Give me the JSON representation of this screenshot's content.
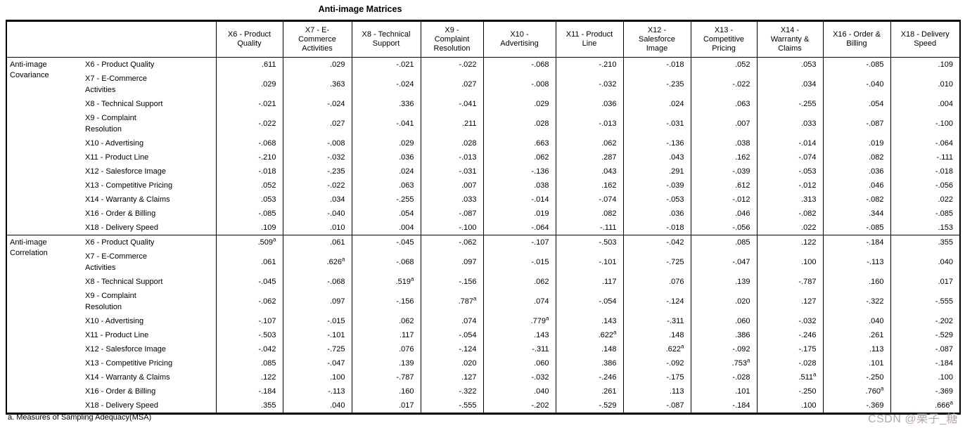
{
  "title": "Anti-image Matrices",
  "footnote": "a. Measures of Sampling Adequacy(MSA)",
  "watermark": "CSDN @栗子_糖",
  "table": {
    "columns": [
      "X6 - Product\nQuality",
      "X7 - E-\nCommerce\nActivities",
      "X8 - Technical\nSupport",
      "X9 -\nComplaint\nResolution",
      "X10 -\nAdvertising",
      "X11 - Product\nLine",
      "X12 -\nSalesforce\nImage",
      "X13 -\nCompetitive\nPricing",
      "X14 -\nWarranty &\nClaims",
      "X16 - Order &\nBilling",
      "X18 - Delivery\nSpeed"
    ],
    "sections": [
      {
        "label": "Anti-image Covariance",
        "rows": [
          {
            "label": "X6 - Product Quality",
            "values": [
              ".611",
              ".029",
              "-.021",
              "-.022",
              "-.068",
              "-.210",
              "-.018",
              ".052",
              ".053",
              "-.085",
              ".109"
            ]
          },
          {
            "label": "X7 - E-Commerce\nActivities",
            "values": [
              ".029",
              ".363",
              "-.024",
              ".027",
              "-.008",
              "-.032",
              "-.235",
              "-.022",
              ".034",
              "-.040",
              ".010"
            ]
          },
          {
            "label": "X8 - Technical Support",
            "values": [
              "-.021",
              "-.024",
              ".336",
              "-.041",
              ".029",
              ".036",
              ".024",
              ".063",
              "-.255",
              ".054",
              ".004"
            ]
          },
          {
            "label": "X9 - Complaint\nResolution",
            "values": [
              "-.022",
              ".027",
              "-.041",
              ".211",
              ".028",
              "-.013",
              "-.031",
              ".007",
              ".033",
              "-.087",
              "-.100"
            ]
          },
          {
            "label": "X10 - Advertising",
            "values": [
              "-.068",
              "-.008",
              ".029",
              ".028",
              ".663",
              ".062",
              "-.136",
              ".038",
              "-.014",
              ".019",
              "-.064"
            ]
          },
          {
            "label": "X11 - Product Line",
            "values": [
              "-.210",
              "-.032",
              ".036",
              "-.013",
              ".062",
              ".287",
              ".043",
              ".162",
              "-.074",
              ".082",
              "-.111"
            ]
          },
          {
            "label": "X12 - Salesforce Image",
            "values": [
              "-.018",
              "-.235",
              ".024",
              "-.031",
              "-.136",
              ".043",
              ".291",
              "-.039",
              "-.053",
              ".036",
              "-.018"
            ]
          },
          {
            "label": "X13 - Competitive Pricing",
            "values": [
              ".052",
              "-.022",
              ".063",
              ".007",
              ".038",
              ".162",
              "-.039",
              ".612",
              "-.012",
              ".046",
              "-.056"
            ]
          },
          {
            "label": "X14 - Warranty & Claims",
            "values": [
              ".053",
              ".034",
              "-.255",
              ".033",
              "-.014",
              "-.074",
              "-.053",
              "-.012",
              ".313",
              "-.082",
              ".022"
            ]
          },
          {
            "label": "X16 - Order & Billing",
            "values": [
              "-.085",
              "-.040",
              ".054",
              "-.087",
              ".019",
              ".082",
              ".036",
              ".046",
              "-.082",
              ".344",
              "-.085"
            ]
          },
          {
            "label": "X18 - Delivery Speed",
            "values": [
              ".109",
              ".010",
              ".004",
              "-.100",
              "-.064",
              "-.111",
              "-.018",
              "-.056",
              ".022",
              "-.085",
              ".153"
            ]
          }
        ]
      },
      {
        "label": "Anti-image Correlation",
        "rows": [
          {
            "label": "X6 - Product Quality",
            "values": [
              ".509a",
              ".061",
              "-.045",
              "-.062",
              "-.107",
              "-.503",
              "-.042",
              ".085",
              ".122",
              "-.184",
              ".355"
            ]
          },
          {
            "label": "X7 - E-Commerce\nActivities",
            "values": [
              ".061",
              ".626a",
              "-.068",
              ".097",
              "-.015",
              "-.101",
              "-.725",
              "-.047",
              ".100",
              "-.113",
              ".040"
            ]
          },
          {
            "label": "X8 - Technical Support",
            "values": [
              "-.045",
              "-.068",
              ".519a",
              "-.156",
              ".062",
              ".117",
              ".076",
              ".139",
              "-.787",
              ".160",
              ".017"
            ]
          },
          {
            "label": "X9 - Complaint\nResolution",
            "values": [
              "-.062",
              ".097",
              "-.156",
              ".787a",
              ".074",
              "-.054",
              "-.124",
              ".020",
              ".127",
              "-.322",
              "-.555"
            ]
          },
          {
            "label": "X10 - Advertising",
            "values": [
              "-.107",
              "-.015",
              ".062",
              ".074",
              ".779a",
              ".143",
              "-.311",
              ".060",
              "-.032",
              ".040",
              "-.202"
            ]
          },
          {
            "label": "X11 - Product Line",
            "values": [
              "-.503",
              "-.101",
              ".117",
              "-.054",
              ".143",
              ".622a",
              ".148",
              ".386",
              "-.246",
              ".261",
              "-.529"
            ]
          },
          {
            "label": "X12 - Salesforce Image",
            "values": [
              "-.042",
              "-.725",
              ".076",
              "-.124",
              "-.311",
              ".148",
              ".622a",
              "-.092",
              "-.175",
              ".113",
              "-.087"
            ]
          },
          {
            "label": "X13 - Competitive Pricing",
            "values": [
              ".085",
              "-.047",
              ".139",
              ".020",
              ".060",
              ".386",
              "-.092",
              ".753a",
              "-.028",
              ".101",
              "-.184"
            ]
          },
          {
            "label": "X14 - Warranty & Claims",
            "values": [
              ".122",
              ".100",
              "-.787",
              ".127",
              "-.032",
              "-.246",
              "-.175",
              "-.028",
              ".511a",
              "-.250",
              ".100"
            ]
          },
          {
            "label": "X16 - Order & Billing",
            "values": [
              "-.184",
              "-.113",
              ".160",
              "-.322",
              ".040",
              ".261",
              ".113",
              ".101",
              "-.250",
              ".760a",
              "-.369"
            ]
          },
          {
            "label": "X18 - Delivery Speed",
            "values": [
              ".355",
              ".040",
              ".017",
              "-.555",
              "-.202",
              "-.529",
              "-.087",
              "-.184",
              ".100",
              "-.369",
              ".666a"
            ]
          }
        ]
      }
    ]
  }
}
